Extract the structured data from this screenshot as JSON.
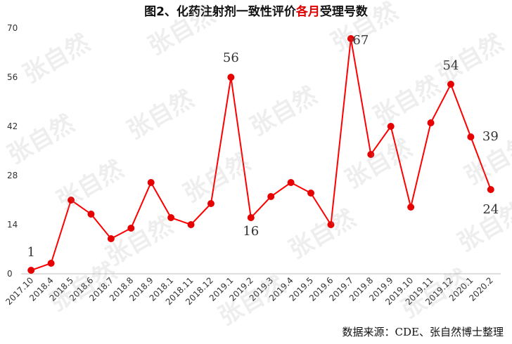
{
  "title": {
    "prefix": "图2、化药注射剂一致性评价",
    "highlight": "各月",
    "suffix": "受理号数",
    "highlight_color": "#e00000"
  },
  "source": "数据来源：CDE、张自然博士整理",
  "watermark": "张自然",
  "chart_data": {
    "type": "line",
    "categories": [
      "2017.10",
      "2018.4",
      "2018.5",
      "2018.6",
      "2018.7",
      "2018.8",
      "2018.9",
      "2018.1",
      "2018.11",
      "2018.12",
      "2019.1",
      "2019.2",
      "2019.3",
      "2019.4",
      "2019.5",
      "2019.6",
      "2019.7",
      "2019.8",
      "2019.9",
      "2019.10",
      "2019.11",
      "2019.12",
      "2020.1",
      "2020.2"
    ],
    "series": [
      {
        "values": [
          1,
          3,
          21,
          17,
          10,
          13,
          26,
          16,
          14,
          20,
          56,
          16,
          22,
          26,
          23,
          14,
          67,
          34,
          42,
          19,
          43,
          54,
          39,
          24
        ]
      }
    ],
    "data_labels": {
      "2017.10": 1,
      "2019.1": 56,
      "2019.2": 16,
      "2019.7": 67,
      "2019.12": 54,
      "2020.1": 39,
      "2020.2": 24
    },
    "ylim": [
      0,
      70
    ],
    "yticks": [
      0,
      14,
      28,
      42,
      56,
      70
    ],
    "grid": false,
    "line_color": "#ff0000",
    "marker_color": "#e60000",
    "xlabel": "",
    "ylabel": ""
  }
}
